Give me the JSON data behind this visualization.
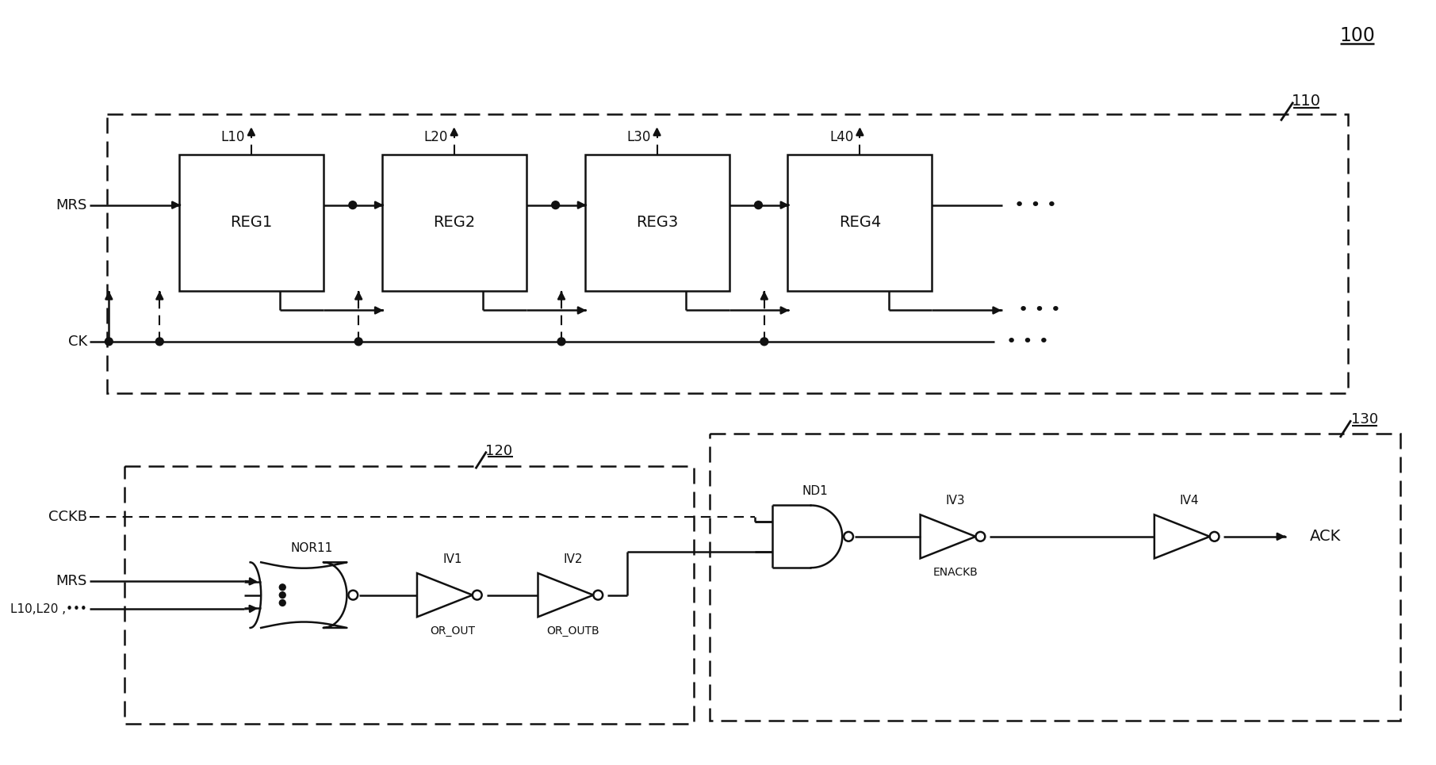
{
  "bg": "#ffffff",
  "lc": "#111111",
  "fig_ref": "100",
  "blk_110": "110",
  "blk_120": "120",
  "blk_130": "130",
  "regs": [
    "REG1",
    "REG2",
    "REG3",
    "REG4"
  ],
  "outs": [
    "L10",
    "L20",
    "L30",
    "L40"
  ],
  "top_inputs": [
    "MRS",
    "CK"
  ],
  "bot_inputs": [
    "CCKB",
    "MRS",
    "L10,L20 ,•••"
  ],
  "gate_nor": "NOR11",
  "gate_iv": [
    "IV1",
    "IV2",
    "IV3",
    "IV4"
  ],
  "gate_nd": "ND1",
  "signals": [
    "OR_OUT",
    "OR_OUTB",
    "ENACKB",
    "ACK"
  ]
}
